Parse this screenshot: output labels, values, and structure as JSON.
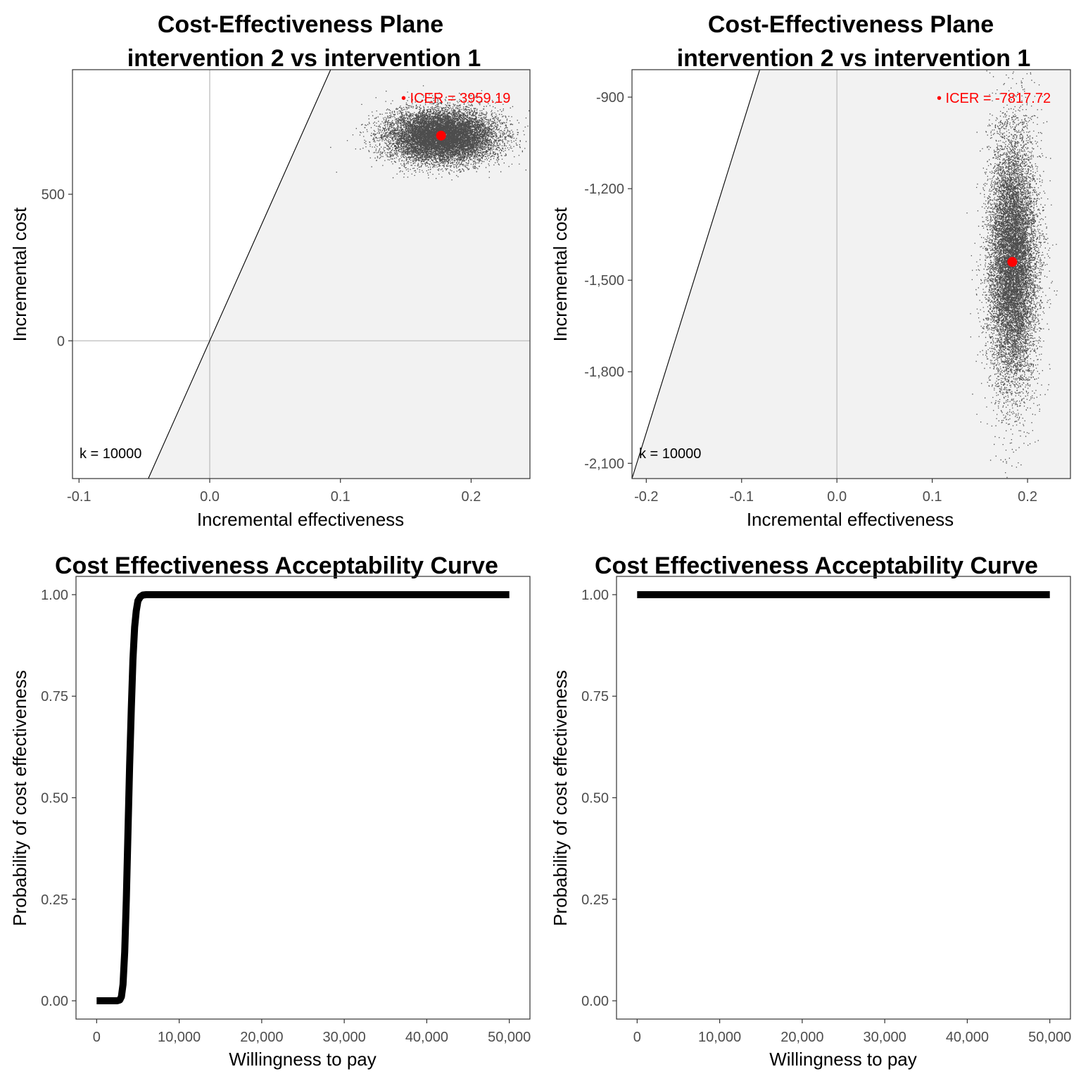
{
  "colors": {
    "point": "#4d4d4d",
    "mean_point": "#ff0000",
    "icer_text": "#ff0000",
    "region_fill": "#f2f2f2",
    "zero_line": "#bdbdbd",
    "curve": "#000000",
    "tick_text": "#4d4d4d"
  },
  "chart_data": [
    {
      "type": "scatter",
      "title": [
        "Cost-Effectiveness Plane",
        "intervention 2 vs intervention 1"
      ],
      "xlabel": "Incremental effectiveness",
      "ylabel": "Incremental cost",
      "xlim": [
        -0.105,
        0.245
      ],
      "ylim": [
        -470,
        925
      ],
      "x_ticks": [
        -0.1,
        0.0,
        0.1,
        0.2
      ],
      "x_tick_labels": [
        "-0.1",
        "0.0",
        "0.1",
        "0.2"
      ],
      "y_ticks": [
        0,
        500
      ],
      "y_tick_labels": [
        "0",
        "500"
      ],
      "zero_lines": {
        "x": 0,
        "y": 0
      },
      "grid": false,
      "wtp_k": 10000,
      "k_label": "k = 10000",
      "icer_label": "• ICER = 3959.19",
      "mean": {
        "x": 0.177,
        "y": 700
      },
      "sample_spread": {
        "x_sd": 0.0205,
        "y_sd": 44
      },
      "n_samples": 12000
    },
    {
      "type": "scatter",
      "title": [
        "Cost-Effectiveness Plane",
        "intervention 2 vs intervention 1"
      ],
      "xlabel": "Incremental effectiveness",
      "ylabel": "Incremental cost",
      "xlim": [
        -0.215,
        0.245
      ],
      "ylim": [
        -2150,
        -810
      ],
      "x_ticks": [
        -0.2,
        -0.1,
        0.0,
        0.1,
        0.2
      ],
      "x_tick_labels": [
        "-0.2",
        "-0.1",
        "0.0",
        "0.1",
        "0.2"
      ],
      "y_ticks": [
        -900,
        -1200,
        -1500,
        -1800,
        -2100
      ],
      "y_tick_labels": [
        "-900",
        "-1,200",
        "-1,500",
        "-1,800",
        "-2,100"
      ],
      "zero_lines": {
        "x": 0
      },
      "grid": false,
      "wtp_k": 10000,
      "k_label": "k = 10000",
      "icer_label": "• ICER = -7817.72",
      "mean": {
        "x": 0.184,
        "y": -1440
      },
      "sample_spread": {
        "x_sd": 0.0125,
        "y_sd": 205
      },
      "n_samples": 12000
    },
    {
      "type": "line",
      "title": "Cost Effectiveness Acceptability Curve",
      "xlabel": "Willingness to pay",
      "ylabel": "Probability of cost effectiveness",
      "xlim": [
        -2500,
        52500
      ],
      "ylim": [
        -0.045,
        1.045
      ],
      "x_ticks": [
        0,
        10000,
        20000,
        30000,
        40000,
        50000
      ],
      "x_tick_labels": [
        "0",
        "10,000",
        "20,000",
        "30,000",
        "40,000",
        "50,000"
      ],
      "y_ticks": [
        0,
        0.25,
        0.5,
        0.75,
        1
      ],
      "y_tick_labels": [
        "0.00",
        "0.25",
        "0.50",
        "0.75",
        "1.00"
      ],
      "grid": false,
      "curve": {
        "x": [
          0,
          2500,
          2800,
          3000,
          3200,
          3400,
          3600,
          3800,
          4000,
          4200,
          4400,
          4600,
          4800,
          5000,
          5300,
          5600,
          6000,
          50000
        ],
        "y": [
          0,
          0,
          0.002,
          0.01,
          0.04,
          0.12,
          0.25,
          0.42,
          0.58,
          0.72,
          0.84,
          0.92,
          0.96,
          0.985,
          0.995,
          0.999,
          1,
          1
        ]
      }
    },
    {
      "type": "line",
      "title": "Cost Effectiveness Acceptability Curve",
      "xlabel": "Willingness to pay",
      "ylabel": "Probability of cost effectiveness",
      "xlim": [
        -2500,
        52500
      ],
      "ylim": [
        -0.045,
        1.045
      ],
      "x_ticks": [
        0,
        10000,
        20000,
        30000,
        40000,
        50000
      ],
      "x_tick_labels": [
        "0",
        "10,000",
        "20,000",
        "30,000",
        "40,000",
        "50,000"
      ],
      "y_ticks": [
        0,
        0.25,
        0.5,
        0.75,
        1
      ],
      "y_tick_labels": [
        "0.00",
        "0.25",
        "0.50",
        "0.75",
        "1.00"
      ],
      "grid": false,
      "curve": {
        "x": [
          0,
          50000
        ],
        "y": [
          1,
          1
        ]
      }
    }
  ]
}
